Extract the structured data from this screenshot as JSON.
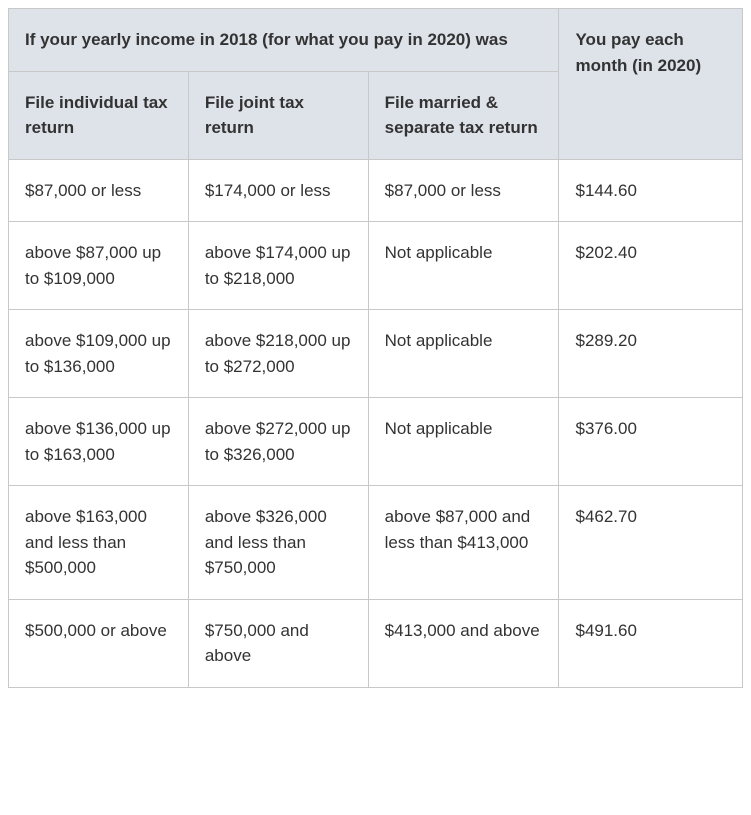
{
  "table": {
    "header": {
      "income_span_title": "If your yearly income in 2018 (for what you pay in 2020) was",
      "pay_title": "You pay each month (in 2020)",
      "sub_headers": {
        "individual": "File individual tax return",
        "joint": "File joint tax return",
        "married_separate": "File married & separate tax return"
      }
    },
    "rows": [
      {
        "individual": "$87,000 or less",
        "joint": "$174,000 or less",
        "married_separate": "$87,000 or less",
        "pay": "$144.60"
      },
      {
        "individual": "above $87,000 up to $109,000",
        "joint": "above $174,000 up to $218,000",
        "married_separate": "Not applicable",
        "pay": "$202.40"
      },
      {
        "individual": "above $109,000 up to $136,000",
        "joint": "above $218,000 up to $272,000",
        "married_separate": "Not applicable",
        "pay": "$289.20"
      },
      {
        "individual": "above $136,000 up to $163,000",
        "joint": "above $272,000 up to $326,000",
        "married_separate": "Not applicable",
        "pay": "$376.00"
      },
      {
        "individual": "above $163,000 and less than $500,000",
        "joint": "above $326,000 and less than $750,000",
        "married_separate": "above $87,000 and less than $413,000",
        "pay": "$462.70"
      },
      {
        "individual": "$500,000 or above",
        "joint": "$750,000 and above",
        "married_separate": "$413,000 and above",
        "pay": "$491.60"
      }
    ],
    "styling": {
      "header_background": "#dee3ea",
      "cell_background": "#ffffff",
      "border_color": "#c8c8c8",
      "text_color": "#333333",
      "font_family": "Arial",
      "font_size_pt": 13,
      "header_font_weight": "bold",
      "column_widths_pct": [
        24.5,
        24.5,
        26,
        25
      ]
    }
  }
}
